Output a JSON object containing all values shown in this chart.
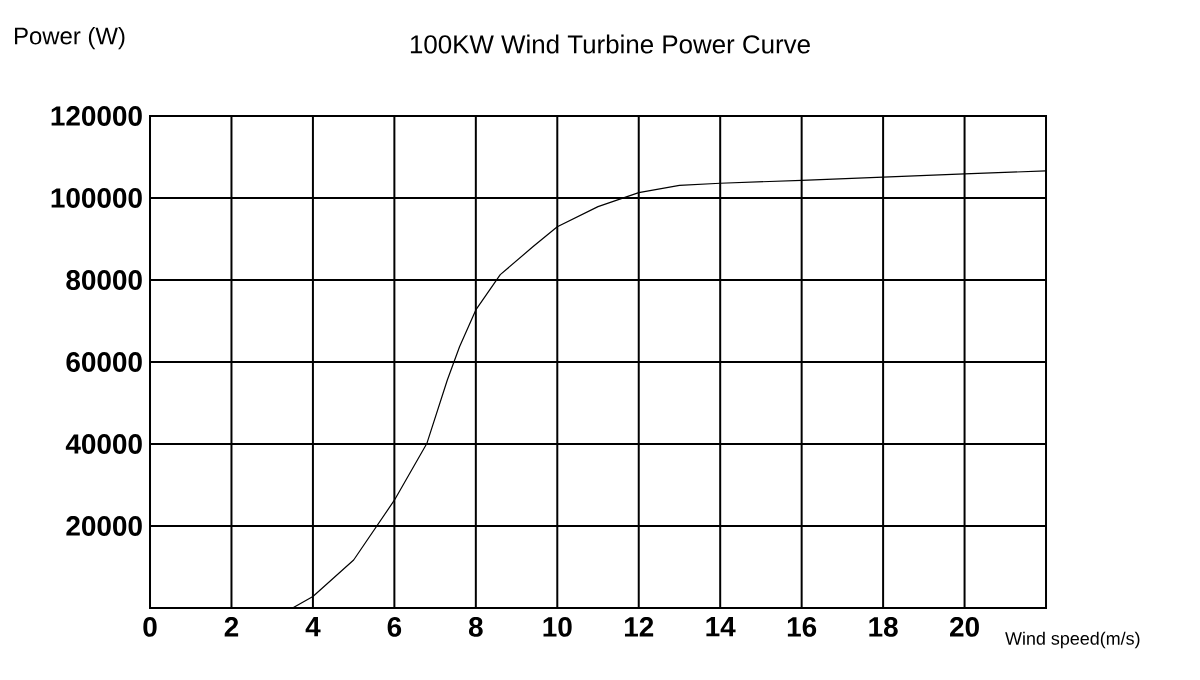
{
  "chart_data": {
    "type": "line",
    "title": "100KW Wind Turbine Power Curve",
    "xlabel": "Wind speed(m/s)",
    "ylabel": "Power (W)",
    "x": [
      3.5,
      4.0,
      5.0,
      6.0,
      6.8,
      7.3,
      7.6,
      8.0,
      8.6,
      9.4,
      10.0,
      11.0,
      12.0,
      13.0,
      14.0,
      16.0,
      18.0,
      20.0,
      22.0
    ],
    "series": [
      {
        "color": "#000000",
        "values": [
          0,
          2800,
          11700,
          26300,
          40200,
          55600,
          63700,
          72700,
          81300,
          88100,
          93000,
          97900,
          101300,
          103100,
          103600,
          104300,
          105100,
          105900,
          106600
        ]
      }
    ],
    "xlim": [
      0,
      22
    ],
    "ylim": [
      0,
      120000
    ],
    "xticks": [
      0,
      2,
      4,
      6,
      8,
      10,
      12,
      14,
      16,
      18,
      20
    ],
    "yticks": [
      20000,
      40000,
      60000,
      80000,
      100000,
      120000
    ],
    "grid": true,
    "marker": "none",
    "line_style": "solid"
  }
}
